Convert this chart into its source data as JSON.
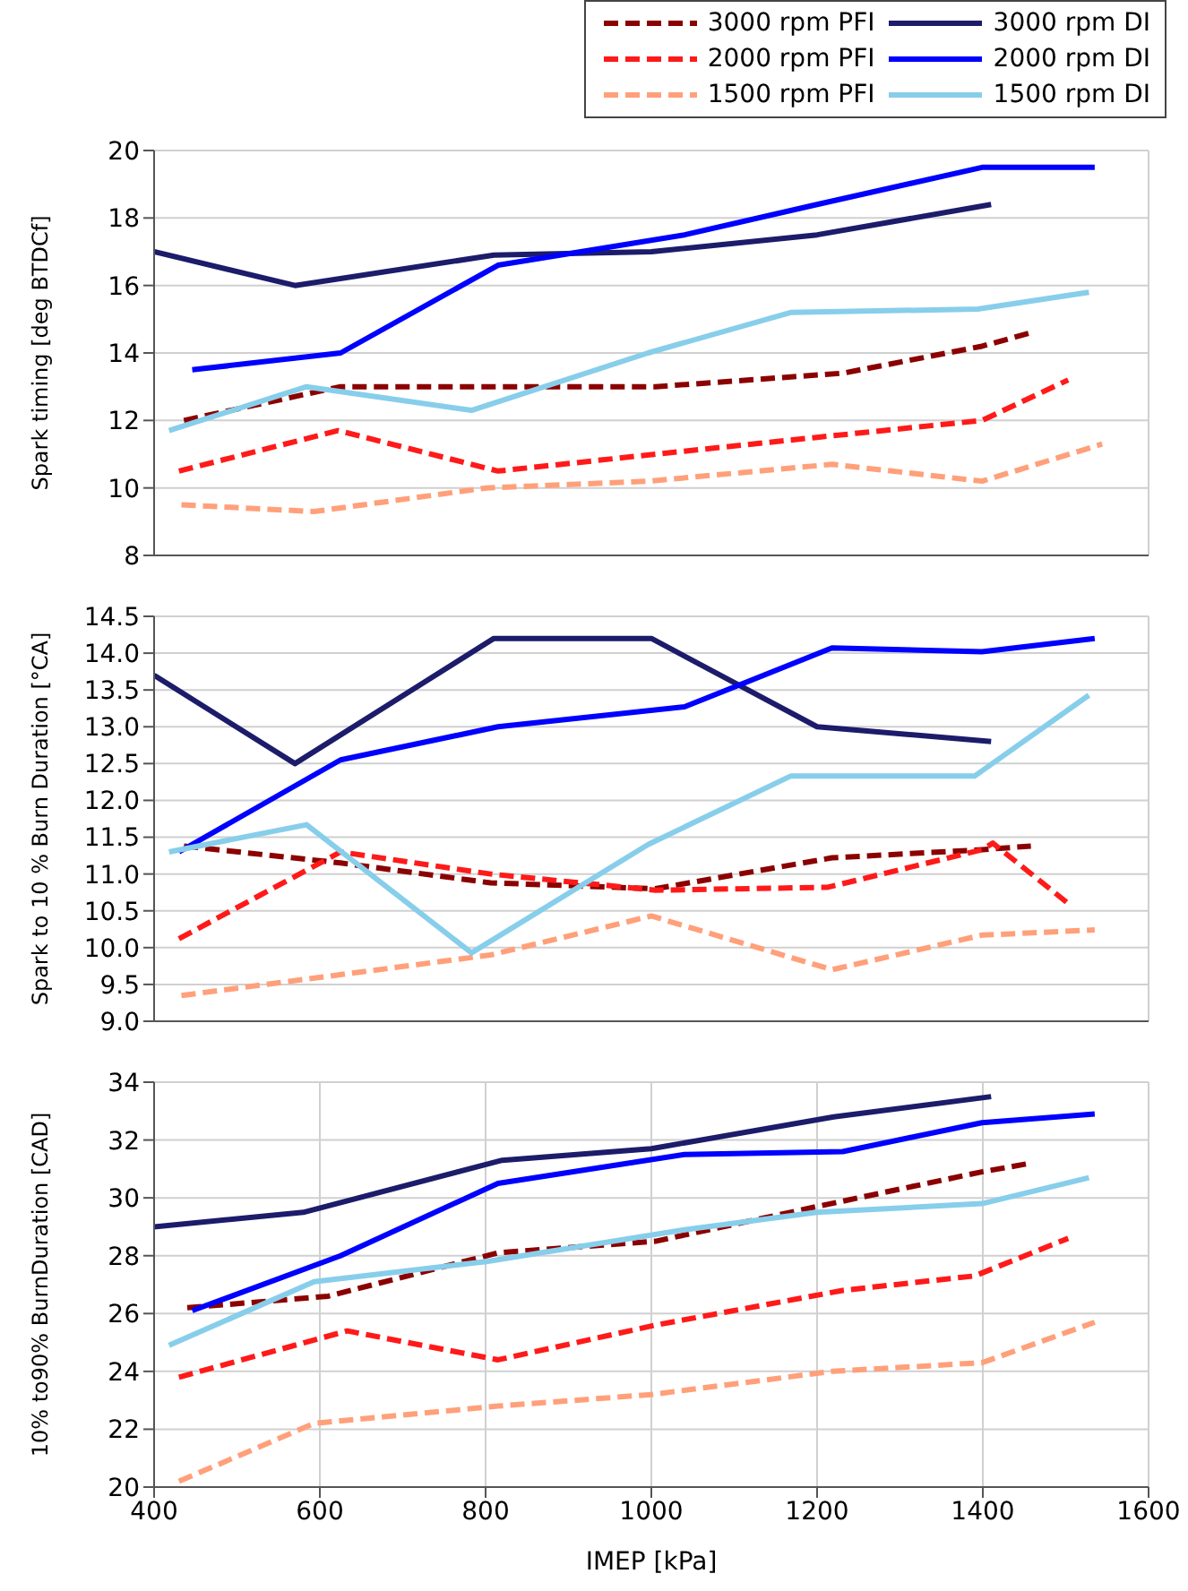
{
  "chart_data": [
    {
      "type": "line",
      "ylabel": "Spark timing [deg BTDCf]",
      "xlim": [
        400,
        1600
      ],
      "xticks": [
        400,
        600,
        800,
        1000,
        1200,
        1400,
        1600
      ],
      "ylim": [
        8,
        20
      ],
      "yticks": [
        8,
        10,
        12,
        14,
        16,
        18,
        20
      ],
      "grid": true,
      "legend": "top right",
      "tick_labels": "y",
      "marker": "none",
      "series": [
        {
          "name": "3000 rpm PFI",
          "color": "#8b0000",
          "line_style": "dashed",
          "x": [
            436,
            625,
            806,
            1005,
            1231,
            1399,
            1458
          ],
          "values": [
            12,
            13,
            13,
            13,
            13.4,
            14.2,
            14.6
          ]
        },
        {
          "name": "2000 rpm PFI",
          "color": "#ff1a1a",
          "line_style": "dashed",
          "x": [
            430,
            622,
            815,
            1005,
            1200,
            1399,
            1503
          ],
          "values": [
            10.5,
            11.7,
            10.5,
            11,
            11.5,
            12,
            13.2
          ]
        },
        {
          "name": "1500 rpm PFI",
          "color": "#ffa07a",
          "line_style": "dashed",
          "x": [
            433,
            593,
            801,
            996,
            1218,
            1399,
            1544
          ],
          "values": [
            9.5,
            9.3,
            10,
            10.2,
            10.7,
            10.2,
            11.3
          ]
        },
        {
          "name": "3000 rpm DI",
          "color": "#1c1c6b",
          "line_style": "solid",
          "x": [
            400,
            570,
            810,
            1000,
            1200,
            1410
          ],
          "values": [
            17,
            16,
            16.9,
            17,
            17.5,
            18.4
          ]
        },
        {
          "name": "2000 rpm DI",
          "color": "#0000ff",
          "line_style": "solid",
          "x": [
            446,
            625,
            815,
            1040,
            1200,
            1399,
            1535
          ],
          "values": [
            13.5,
            14,
            16.6,
            17.5,
            18.4,
            19.5,
            19.5
          ]
        },
        {
          "name": "1500 rpm DI",
          "color": "#87ceeb",
          "line_style": "solid",
          "x": [
            418,
            584,
            783,
            996,
            1168,
            1394,
            1528
          ],
          "values": [
            11.7,
            13,
            12.3,
            14,
            15.2,
            15.3,
            15.8
          ]
        }
      ]
    },
    {
      "type": "line",
      "ylabel": "Spark to 10 % Burn Duration [°CA]",
      "xlim": [
        400,
        1600
      ],
      "xticks": [
        400,
        600,
        800,
        1000,
        1200,
        1400,
        1600
      ],
      "ylim": [
        9,
        14.5
      ],
      "yticks": [
        {
          "value": 9,
          "label": "9.0"
        },
        9.5,
        {
          "value": 10,
          "label": "10.0"
        },
        10.5,
        {
          "value": 11,
          "label": "11.0"
        },
        11.5,
        {
          "value": 12,
          "label": "12.0"
        },
        12.5,
        {
          "value": 13,
          "label": "13.0"
        },
        13.5,
        {
          "value": 14,
          "label": "14.0"
        },
        14.5
      ],
      "grid": true,
      "tick_labels": "y",
      "marker": "none",
      "series": [
        {
          "color": "#8b0000",
          "line_style": "dashed",
          "x": [
            436,
            625,
            806,
            1005,
            1218,
            1399,
            1458
          ],
          "values": [
            11.38,
            11.15,
            10.88,
            10.8,
            11.22,
            11.33,
            11.38
          ]
        },
        {
          "color": "#ff1a1a",
          "line_style": "dashed",
          "x": [
            430,
            625,
            806,
            1005,
            1213,
            1399,
            1412,
            1503
          ],
          "values": [
            10.12,
            11.3,
            11,
            10.78,
            10.82,
            11.33,
            11.42,
            10.6
          ]
        },
        {
          "color": "#ffa07a",
          "line_style": "dashed",
          "x": [
            433,
            806,
            1000,
            1218,
            1399,
            1535
          ],
          "values": [
            9.35,
            9.9,
            10.43,
            9.7,
            10.17,
            10.24
          ]
        },
        {
          "color": "#1c1c6b",
          "line_style": "solid",
          "x": [
            400,
            570,
            810,
            1000,
            1200,
            1410
          ],
          "values": [
            13.7,
            12.5,
            14.2,
            14.2,
            13,
            12.8
          ]
        },
        {
          "color": "#0000ff",
          "line_style": "solid",
          "x": [
            430,
            625,
            815,
            1040,
            1218,
            1399,
            1535
          ],
          "values": [
            11.3,
            12.55,
            13,
            13.27,
            14.07,
            14.02,
            14.2
          ]
        },
        {
          "color": "#87ceeb",
          "line_style": "solid",
          "x": [
            418,
            584,
            783,
            996,
            1168,
            1390,
            1528
          ],
          "values": [
            11.3,
            11.67,
            9.93,
            11.4,
            12.33,
            12.33,
            13.43
          ]
        }
      ]
    },
    {
      "type": "line",
      "ylabel": "10% to90% BurnDuration [CAD]",
      "xlabel": "IMEP [kPa]",
      "xlim": [
        400,
        1600
      ],
      "xticks": [
        400,
        600,
        800,
        1000,
        1200,
        1400,
        1600
      ],
      "ylim": [
        20,
        34
      ],
      "yticks": [
        20,
        22,
        24,
        26,
        28,
        30,
        32,
        34
      ],
      "grid": true,
      "marker": "none",
      "series": [
        {
          "color": "#8b0000",
          "line_style": "dashed",
          "x": [
            440,
            610,
            815,
            1005,
            1200,
            1399,
            1458
          ],
          "values": [
            26.2,
            26.6,
            28.1,
            28.5,
            29.7,
            30.9,
            31.2
          ]
        },
        {
          "color": "#ff1a1a",
          "line_style": "dashed",
          "x": [
            430,
            633,
            815,
            1005,
            1231,
            1390,
            1503
          ],
          "values": [
            23.8,
            25.4,
            24.4,
            25.6,
            26.8,
            27.3,
            28.6
          ]
        },
        {
          "color": "#ffa07a",
          "line_style": "dashed",
          "x": [
            430,
            593,
            815,
            1000,
            1218,
            1399,
            1535
          ],
          "values": [
            20.2,
            22.2,
            22.8,
            23.2,
            24,
            24.3,
            25.7
          ]
        },
        {
          "color": "#1c1c6b",
          "line_style": "solid",
          "x": [
            400,
            580,
            820,
            1000,
            1220,
            1410
          ],
          "values": [
            29,
            29.5,
            31.3,
            31.7,
            32.8,
            33.5
          ]
        },
        {
          "color": "#0000ff",
          "line_style": "solid",
          "x": [
            446,
            625,
            815,
            1040,
            1231,
            1399,
            1535
          ],
          "values": [
            26.1,
            28,
            30.5,
            31.5,
            31.6,
            32.6,
            32.9
          ]
        },
        {
          "color": "#87ceeb",
          "line_style": "solid",
          "x": [
            418,
            593,
            801,
            1040,
            1200,
            1399,
            1528
          ],
          "values": [
            24.9,
            27.1,
            27.8,
            28.9,
            29.5,
            29.8,
            30.7
          ]
        }
      ]
    }
  ]
}
